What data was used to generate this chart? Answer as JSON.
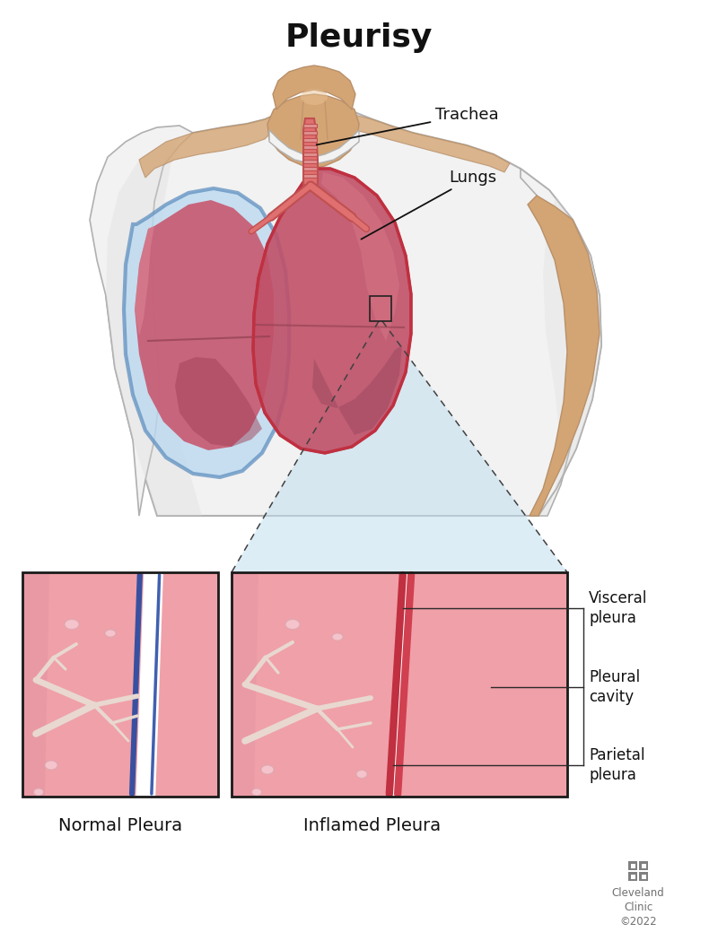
{
  "title": "Pleurisy",
  "title_fontsize": 26,
  "title_fontweight": "bold",
  "bg_color": "#ffffff",
  "label_trachea": "Trachea",
  "label_lungs": "Lungs",
  "label_visceral_pleura": "Visceral\npleura",
  "label_pleural_cavity": "Pleural\ncavity",
  "label_parietal_pleura": "Parietal\npleura",
  "label_normal_pleura": "Normal Pleura",
  "label_inflamed_pleura": "Inflamed Pleura",
  "label_cleveland": "Cleveland\nClinic\n©2022",
  "annotation_fontsize": 12,
  "caption_fontsize": 14,
  "skin_color": "#d4a574",
  "skin_shadow": "#b8906a",
  "skin_light": "#e8c090",
  "shirt_color": "#f2f2f2",
  "shirt_shadow": "#d8d8d8",
  "shirt_outline": "#b0b0b0",
  "lung_left_color": "#c85060",
  "lung_right_color": "#c05868",
  "lung_outline": "#a03040",
  "pleura_blue": "#6090c0",
  "pleura_fill": "#a8c8e8",
  "trachea_fill": "#e07070",
  "trachea_ring": "#c05050",
  "tissue_pink": "#f0a8b0",
  "tissue_pink2": "#e89098",
  "vessel_color": "#e8d8d0",
  "vessel_color2": "#d8c8c0",
  "blob_fill": "#f8d0d8",
  "blob_edge": "#d8a8b0",
  "normal_blue1": "#3850a0",
  "normal_blue2": "#4060b0",
  "inflamed_red1": "#c03040",
  "inflamed_red2": "#d04050",
  "white_space": "#ffffff",
  "zoom_blue": "#c0dff0",
  "zoom_blue2": "#b0d0e8",
  "dashed_color": "#404040",
  "box_outline": "#1a1a1a",
  "arm_right_skin": "#c89868",
  "arm_shadow": "#a07848"
}
